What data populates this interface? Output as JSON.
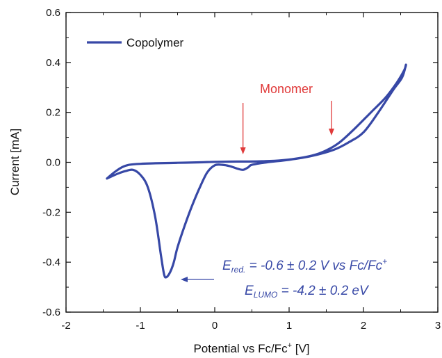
{
  "colors": {
    "curve": "#3748a6",
    "arrow_red": "#e03a3a",
    "axis": "#111111"
  },
  "chart_data": {
    "type": "line",
    "title": "",
    "xlabel": {
      "main": "Potential vs Fc/Fc",
      "sup": "+",
      "unit": " [V]"
    },
    "ylabel": "Current [mA]",
    "xlim": [
      -2,
      3
    ],
    "ylim": [
      -0.6,
      0.6
    ],
    "xticks": [
      -2,
      -1,
      0,
      1,
      2,
      3
    ],
    "yticks": [
      -0.6,
      -0.4,
      -0.2,
      0.0,
      0.2,
      0.4,
      0.6
    ],
    "xtick_labels": [
      "-2",
      "-1",
      "0",
      "1",
      "2",
      "3"
    ],
    "ytick_labels": [
      "-0.6",
      "-0.4",
      "-0.2",
      "0.0",
      "0.2",
      "0.4",
      "0.6"
    ],
    "grid": false,
    "legend_position": "top-left",
    "series": [
      {
        "name": "Copolymer",
        "x": [
          -1.45,
          -1.35,
          -1.25,
          -1.15,
          -1.0,
          -0.8,
          -0.5,
          -0.2,
          0.0,
          0.3,
          0.6,
          0.9,
          1.2,
          1.4,
          1.55,
          1.7,
          1.9,
          2.1,
          2.3,
          2.45,
          2.55,
          2.57,
          2.52,
          2.4,
          2.2,
          2.0,
          1.8,
          1.6,
          1.3,
          1.0,
          0.7,
          0.5,
          0.45,
          0.38,
          0.3,
          0.2,
          0.1,
          0.0,
          -0.1,
          -0.2,
          -0.3,
          -0.4,
          -0.5,
          -0.55,
          -0.6,
          -0.65,
          -0.68,
          -0.72,
          -0.8,
          -0.9,
          -1.0,
          -1.1,
          -1.2,
          -1.3,
          -1.45
        ],
        "y": [
          -0.065,
          -0.04,
          -0.02,
          -0.01,
          -0.006,
          -0.004,
          -0.002,
          0.0,
          0.002,
          0.003,
          0.004,
          0.008,
          0.02,
          0.035,
          0.055,
          0.085,
          0.14,
          0.2,
          0.26,
          0.32,
          0.37,
          0.39,
          0.34,
          0.29,
          0.2,
          0.12,
          0.08,
          0.05,
          0.025,
          0.01,
          0.0,
          -0.01,
          -0.02,
          -0.03,
          -0.025,
          -0.015,
          -0.01,
          -0.012,
          -0.04,
          -0.1,
          -0.17,
          -0.25,
          -0.34,
          -0.4,
          -0.44,
          -0.46,
          -0.45,
          -0.38,
          -0.22,
          -0.1,
          -0.05,
          -0.03,
          -0.035,
          -0.045,
          -0.065
        ]
      }
    ],
    "annotations": {
      "monomer_label": "Monomer",
      "monomer_arrows_x": [
        0.38,
        1.57
      ],
      "ered": {
        "E": "E",
        "sub": "red.",
        "rest": " = -0.6 ± 0.2 V vs Fc/Fc",
        "sup": "+"
      },
      "elumo": {
        "E": "E",
        "sub": "LUMO",
        "rest": " = -4.2 ± 0.2 eV"
      }
    }
  }
}
